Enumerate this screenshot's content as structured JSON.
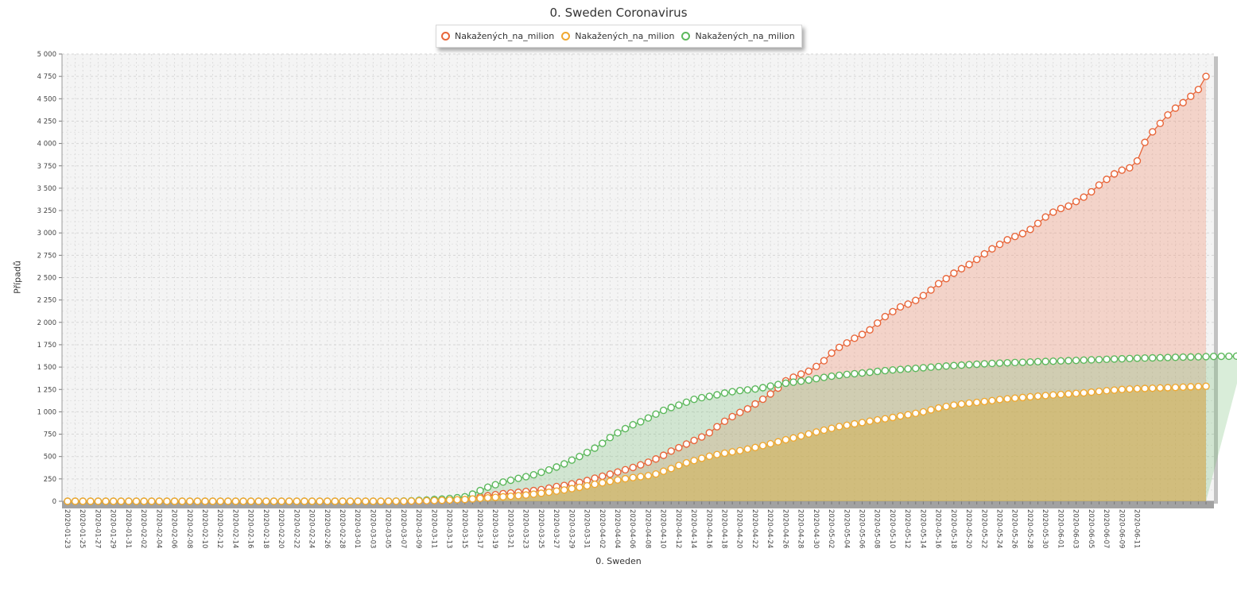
{
  "chart_data": {
    "type": "area",
    "title": "0. Sweden Coronavirus",
    "xlabel": "0. Sweden",
    "ylabel": "Případů",
    "ylim": [
      0,
      5000
    ],
    "y_ticks": [
      "0",
      "250",
      "500",
      "750",
      "1 000",
      "1 250",
      "1 500",
      "1 750",
      "2 000",
      "2 250",
      "2 500",
      "2 750",
      "3 000",
      "3 250",
      "3 500",
      "3 750",
      "4 000",
      "4 250",
      "4 500",
      "4 750",
      "5 000"
    ],
    "x_start": "2020-01-23",
    "x_end": "2020-06-11",
    "x_tick_labels": [
      "2020-01-23",
      "2020-01-25",
      "2020-01-27",
      "2020-01-29",
      "2020-01-31",
      "2020-02-02",
      "2020-02-04",
      "2020-02-06",
      "2020-02-08",
      "2020-02-10",
      "2020-02-12",
      "2020-02-14",
      "2020-02-16",
      "2020-02-18",
      "2020-02-20",
      "2020-02-22",
      "2020-02-24",
      "2020-02-26",
      "2020-02-28",
      "2020-03-01",
      "2020-03-03",
      "2020-03-05",
      "2020-03-07",
      "2020-03-09",
      "2020-03-11",
      "2020-03-13",
      "2020-03-15",
      "2020-03-17",
      "2020-03-19",
      "2020-03-21",
      "2020-03-23",
      "2020-03-25",
      "2020-03-27",
      "2020-03-29",
      "2020-03-31",
      "2020-04-02",
      "2020-04-04",
      "2020-04-06",
      "2020-04-08",
      "2020-04-10",
      "2020-04-12",
      "2020-04-14",
      "2020-04-16",
      "2020-04-18",
      "2020-04-20",
      "2020-04-22",
      "2020-04-24",
      "2020-04-26",
      "2020-04-28",
      "2020-04-30",
      "2020-05-02",
      "2020-05-04",
      "2020-05-06",
      "2020-05-08",
      "2020-05-10",
      "2020-05-12",
      "2020-05-14",
      "2020-05-16",
      "2020-05-18",
      "2020-05-20",
      "2020-05-22",
      "2020-05-24",
      "2020-05-26",
      "2020-05-28",
      "2020-05-30",
      "2020-06-01",
      "2020-06-03",
      "2020-06-05",
      "2020-06-07",
      "2020-06-09",
      "2020-06-11"
    ],
    "grid": true,
    "legend_position": "top",
    "series": [
      {
        "name": "Nakažených_na_milion",
        "color": "#e8663a",
        "fill": "rgba(240,150,120,0.35)",
        "values": [
          0,
          0,
          0,
          0,
          0,
          0,
          0,
          0,
          0,
          0,
          0,
          0,
          0,
          0,
          0,
          0,
          0,
          0,
          0,
          0,
          0,
          0,
          0,
          0,
          0,
          0,
          0,
          0,
          0,
          0,
          0,
          0,
          0,
          0,
          0,
          0,
          0,
          0,
          0,
          0,
          0,
          0,
          0,
          1,
          1,
          3,
          5,
          6,
          8,
          11,
          15,
          19,
          22,
          33,
          48,
          61,
          74,
          85,
          93,
          100,
          109,
          120,
          130,
          147,
          165,
          177,
          195,
          211,
          232,
          258,
          280,
          303,
          327,
          352,
          378,
          407,
          437,
          473,
          514,
          561,
          599,
          640,
          680,
          719,
          766,
          833,
          894,
          946,
          993,
          1033,
          1088,
          1141,
          1200,
          1265,
          1346,
          1387,
          1422,
          1454,
          1507,
          1571,
          1657,
          1720,
          1770,
          1822,
          1865,
          1916,
          1992,
          2064,
          2120,
          2173,
          2204,
          2245,
          2300,
          2362,
          2433,
          2489,
          2550,
          2600,
          2647,
          2704,
          2766,
          2822,
          2872,
          2923,
          2960,
          2993,
          3039,
          3107,
          3178,
          3232,
          3273,
          3300,
          3351,
          3400,
          3460,
          3535,
          3599,
          3660,
          3702,
          3727,
          3805,
          4012,
          4130,
          4225,
          4319,
          4395,
          4456,
          4527,
          4603,
          4750
        ]
      },
      {
        "name": "Nakažených_na_milion",
        "color": "#f0a830",
        "fill": "rgba(210,170,60,0.45)",
        "values": [
          0,
          0,
          0,
          0,
          0,
          0,
          0,
          0,
          0,
          0,
          0,
          0,
          0,
          0,
          0,
          0,
          0,
          0,
          0,
          0,
          0,
          0,
          0,
          0,
          0,
          0,
          0,
          0,
          0,
          0,
          0,
          0,
          0,
          0,
          0,
          0,
          0,
          0,
          0,
          0,
          0,
          0,
          0,
          1,
          1,
          3,
          5,
          6,
          8,
          11,
          14,
          17,
          20,
          26,
          33,
          38,
          44,
          50,
          56,
          63,
          70,
          79,
          90,
          101,
          114,
          126,
          141,
          156,
          173,
          190,
          206,
          223,
          238,
          252,
          265,
          275,
          286,
          305,
          336,
          366,
          400,
          430,
          455,
          480,
          503,
          522,
          538,
          552,
          566,
          583,
          601,
          622,
          643,
          665,
          688,
          708,
          730,
          752,
          774,
          795,
          815,
          835,
          850,
          866,
          880,
          895,
          910,
          922,
          937,
          953,
          967,
          983,
          1000,
          1022,
          1043,
          1060,
          1075,
          1087,
          1097,
          1105,
          1115,
          1125,
          1137,
          1145,
          1153,
          1160,
          1168,
          1175,
          1182,
          1188,
          1194,
          1200,
          1206,
          1212,
          1220,
          1228,
          1236,
          1243,
          1250,
          1255,
          1258,
          1261,
          1264,
          1267,
          1270,
          1273,
          1276,
          1280,
          1283,
          1286
        ]
      },
      {
        "name": "Nakažených_na_milion",
        "color": "#5cb85c",
        "fill": "rgba(120,190,120,0.28)",
        "values": [
          0,
          0,
          0,
          0,
          0,
          0,
          0,
          0,
          0,
          0,
          0,
          0,
          0,
          0,
          0,
          0,
          0,
          0,
          0,
          0,
          0,
          0,
          0,
          0,
          0,
          0,
          0,
          0,
          0,
          0,
          0,
          0,
          0,
          0,
          0,
          0,
          0,
          0,
          0,
          0,
          0,
          0,
          1,
          2,
          3,
          6,
          10,
          14,
          20,
          25,
          32,
          40,
          50,
          80,
          120,
          157,
          185,
          215,
          235,
          256,
          275,
          296,
          324,
          350,
          383,
          418,
          460,
          500,
          546,
          594,
          648,
          712,
          765,
          812,
          855,
          889,
          931,
          974,
          1016,
          1048,
          1075,
          1107,
          1140,
          1158,
          1173,
          1190,
          1210,
          1225,
          1237,
          1245,
          1255,
          1270,
          1288,
          1305,
          1320,
          1332,
          1343,
          1355,
          1371,
          1385,
          1398,
          1408,
          1418,
          1426,
          1434,
          1442,
          1452,
          1460,
          1468,
          1474,
          1480,
          1486,
          1493,
          1499,
          1506,
          1512,
          1517,
          1522,
          1527,
          1532,
          1537,
          1541,
          1545,
          1548,
          1551,
          1554,
          1557,
          1560,
          1563,
          1566,
          1569,
          1572,
          1575,
          1578,
          1581,
          1584,
          1587,
          1590,
          1593,
          1596,
          1599,
          1601,
          1603,
          1605,
          1607,
          1609,
          1611,
          1613,
          1615,
          1617,
          1619,
          1620,
          1621,
          1622,
          1623
        ]
      }
    ]
  }
}
